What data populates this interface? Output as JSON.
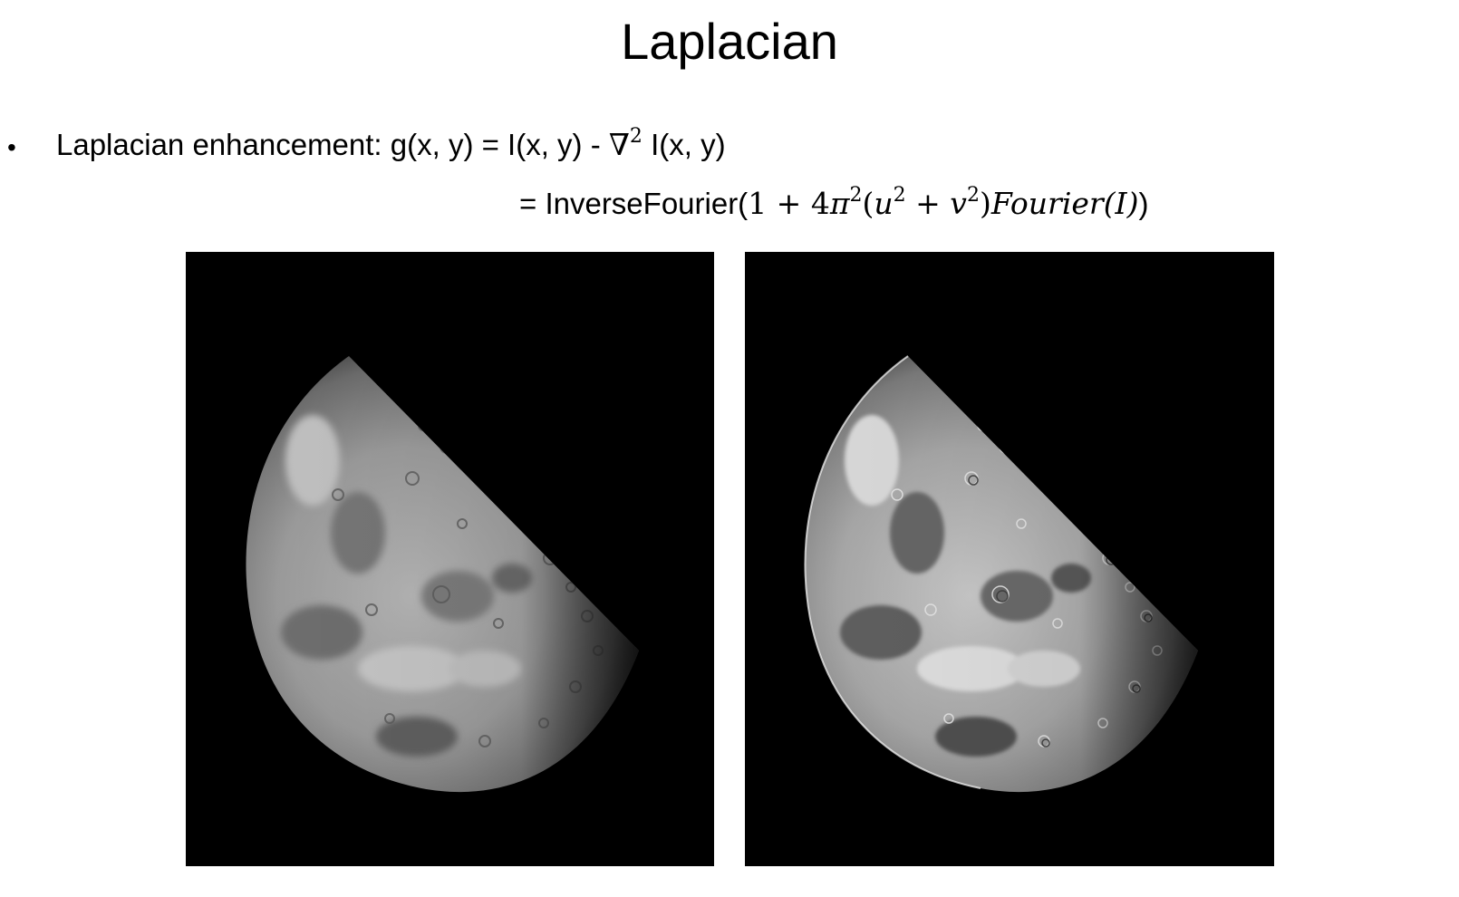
{
  "slide": {
    "title": "Laplacian",
    "bullet": "•",
    "line1": {
      "prefix": "Laplacian enhancement: g(x, y) = I(x, y) - ",
      "nabla": "∇",
      "nabla_power": "2",
      "suffix": " I(x, y)"
    },
    "line2": {
      "prefix": "= InverseFourier(",
      "one_plus": "1 + 4",
      "pi": "π",
      "pi_power": "2",
      "open": "(",
      "u": "u",
      "u_power": "2",
      "plus_v": " + ",
      "v": "v",
      "v_power": "2",
      "close": ")",
      "fourier": "Fourier",
      "arg": "(I)",
      "end": ")"
    }
  },
  "images": {
    "left": {
      "subject": "moon-original",
      "tone": "smooth grayscale"
    },
    "right": {
      "subject": "moon-laplacian-enhanced",
      "tone": "sharpened grayscale"
    }
  },
  "colors": {
    "background": "#ffffff",
    "image_background": "#000000",
    "text": "#000000"
  }
}
